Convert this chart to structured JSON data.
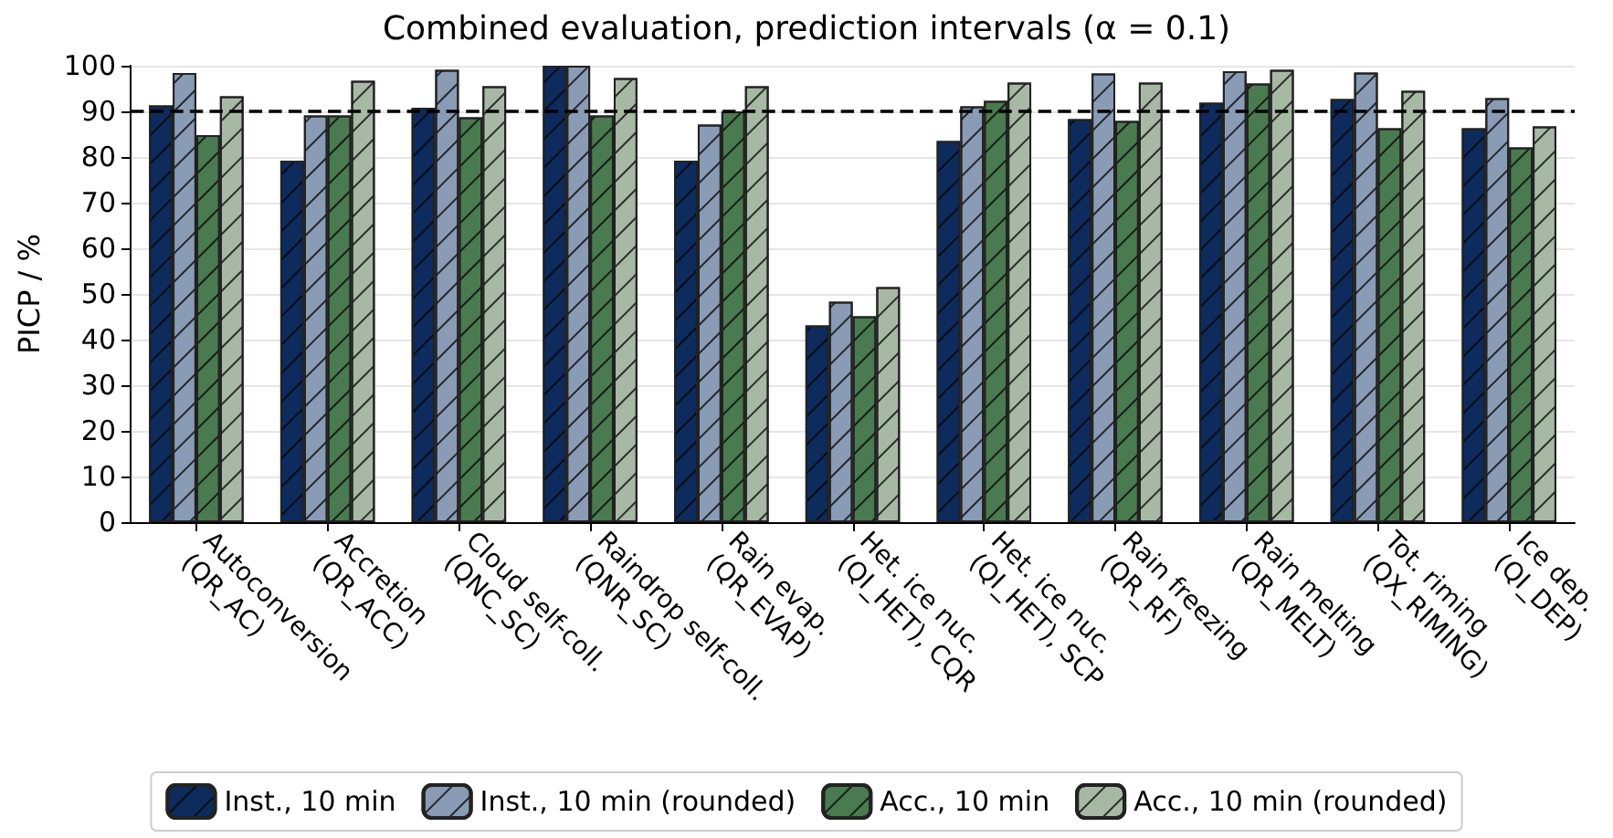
{
  "chart_data": {
    "type": "bar",
    "title": "Combined evaluation, prediction intervals (α = 0.1)",
    "ylabel": "PICP / %",
    "categories": [
      "Autoconversion\n(QR_AC)",
      "Accretion\n(QR_ACC)",
      "Cloud self-coll.\n(QNC_SC)",
      "Raindrop self-coll.\n(QNR_SC)",
      "Rain evap.\n(QR_EVAP)",
      "Het. ice nuc.\n(QI_HET), CQR",
      "Het. ice nuc.\n(QI_HET), SCP",
      "Rain freezing\n(QR_RF)",
      "Rain melting\n(QR_MELT)",
      "Tot. riming\n(QX_RIMING)",
      "Ice dep.\n(QI_DEP)"
    ],
    "series": [
      {
        "name": "Inst., 10 min",
        "color": "#0d2b5c",
        "values": [
          91.3,
          79.2,
          90.8,
          100,
          79.2,
          43.1,
          83.5,
          88.3,
          91.9,
          92.7,
          86.3
        ]
      },
      {
        "name": "Inst., 10 min (rounded)",
        "color": "#8a9bb5",
        "values": [
          98.4,
          89.1,
          99.1,
          100,
          87.1,
          48.3,
          91.1,
          98.3,
          98.8,
          98.5,
          92.9
        ]
      },
      {
        "name": "Acc., 10 min",
        "color": "#4a7a4f",
        "values": [
          84.8,
          89.1,
          88.7,
          89.1,
          90,
          45.1,
          92.3,
          87.9,
          96.1,
          86.3,
          82.1
        ]
      },
      {
        "name": "Acc., 10 min (rounded)",
        "color": "#a7b9a4",
        "values": [
          93.3,
          96.7,
          95.5,
          97.3,
          95.5,
          51.5,
          96.3,
          96.3,
          99.1,
          94.5,
          86.7
        ]
      }
    ],
    "ylim": [
      0,
      100
    ],
    "yticks": [
      0,
      10,
      20,
      30,
      40,
      50,
      60,
      70,
      80,
      90,
      100
    ],
    "grid": "y",
    "legend": "bottom",
    "ref_lines": [
      {
        "axis": "y",
        "value": 90,
        "color": "#000000",
        "line_style": "dashed"
      }
    ]
  }
}
